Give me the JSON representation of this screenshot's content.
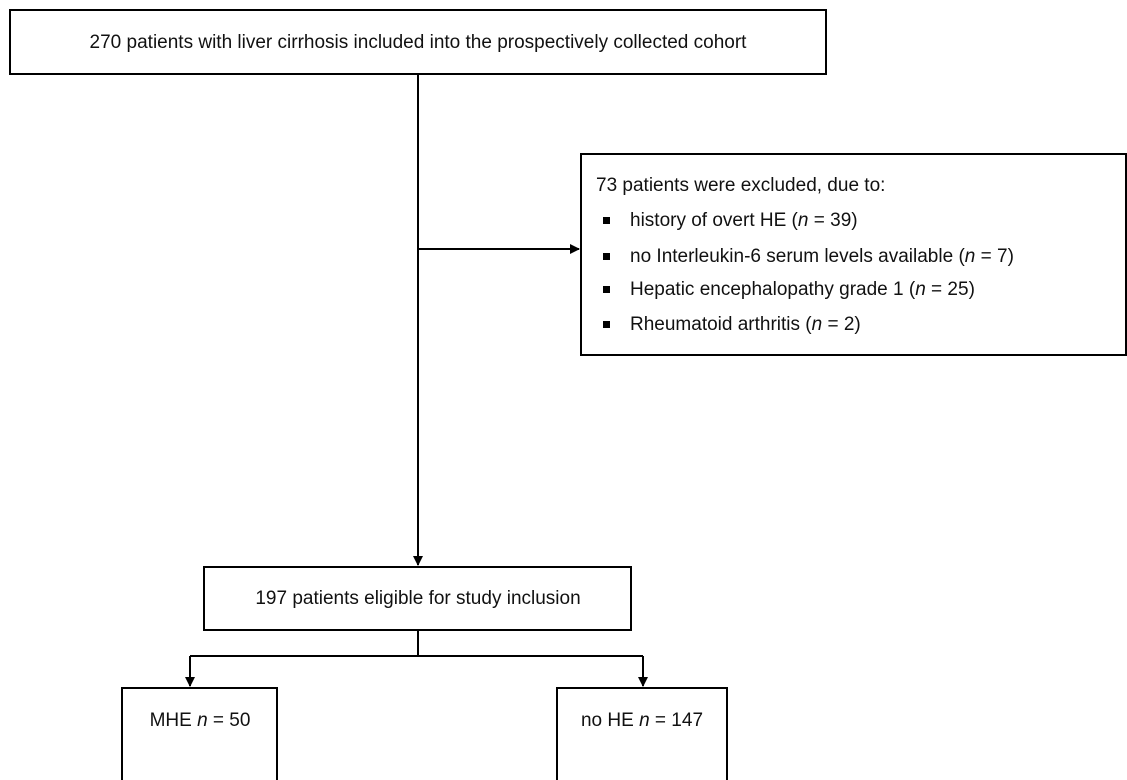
{
  "nodes": [
    {
      "label": "270 patients with liver cirrhosis included into the prospectively collected cohort"
    },
    {
      "heading": "73 patients were excluded, due to:",
      "items": [
        [
          "history of overt HE (",
          "n",
          " = 39)"
        ],
        [
          "no Interleukin-6 serum levels available (",
          "n",
          " = 7)"
        ],
        [
          "Hepatic encephalopathy grade 1 (",
          "n",
          " = 25)"
        ],
        [
          "Rheumatoid arthritis (",
          "n",
          " = 2)"
        ]
      ]
    },
    {
      "label": "197 patients eligible for study inclusion"
    },
    {
      "label": [
        "MHE ",
        "n",
        " = 50"
      ]
    },
    {
      "label": [
        "no HE ",
        "n",
        " = 147"
      ]
    }
  ]
}
